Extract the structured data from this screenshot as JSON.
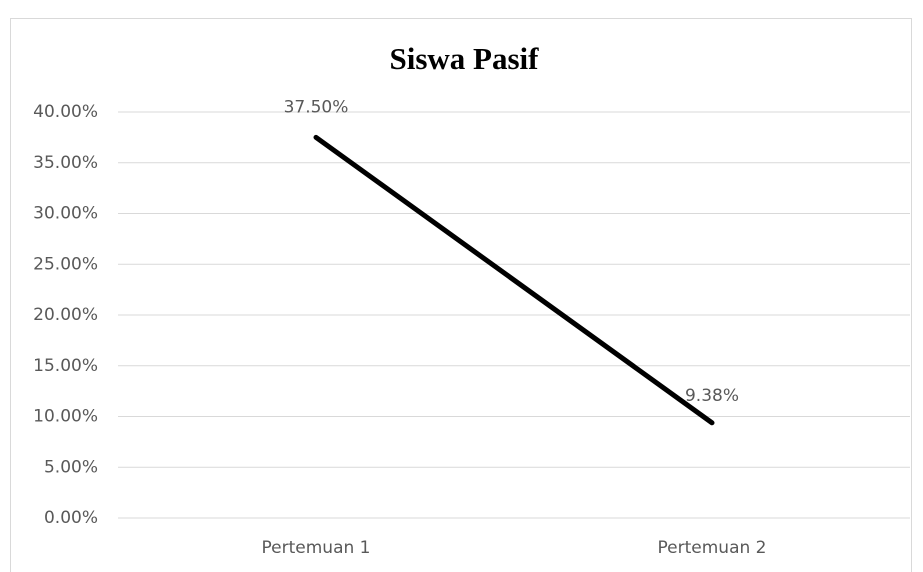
{
  "chart_data": {
    "type": "line",
    "title": "Siswa Pasif",
    "categories": [
      "Pertemuan 1",
      "Pertemuan 2"
    ],
    "values": [
      37.5,
      9.38
    ],
    "value_labels": [
      "37.50%",
      "9.38%"
    ],
    "color": "#000000",
    "ylim": [
      0,
      40
    ],
    "yticks": [
      {
        "value": 0,
        "label": "0.00%"
      },
      {
        "value": 5,
        "label": "5.00%"
      },
      {
        "value": 10,
        "label": "10.00%"
      },
      {
        "value": 15,
        "label": "15.00%"
      },
      {
        "value": 20,
        "label": "20.00%"
      },
      {
        "value": 25,
        "label": "25.00%"
      },
      {
        "value": 30,
        "label": "30.00%"
      },
      {
        "value": 35,
        "label": "35.00%"
      },
      {
        "value": 40,
        "label": "40.00%"
      }
    ],
    "grid": true
  }
}
